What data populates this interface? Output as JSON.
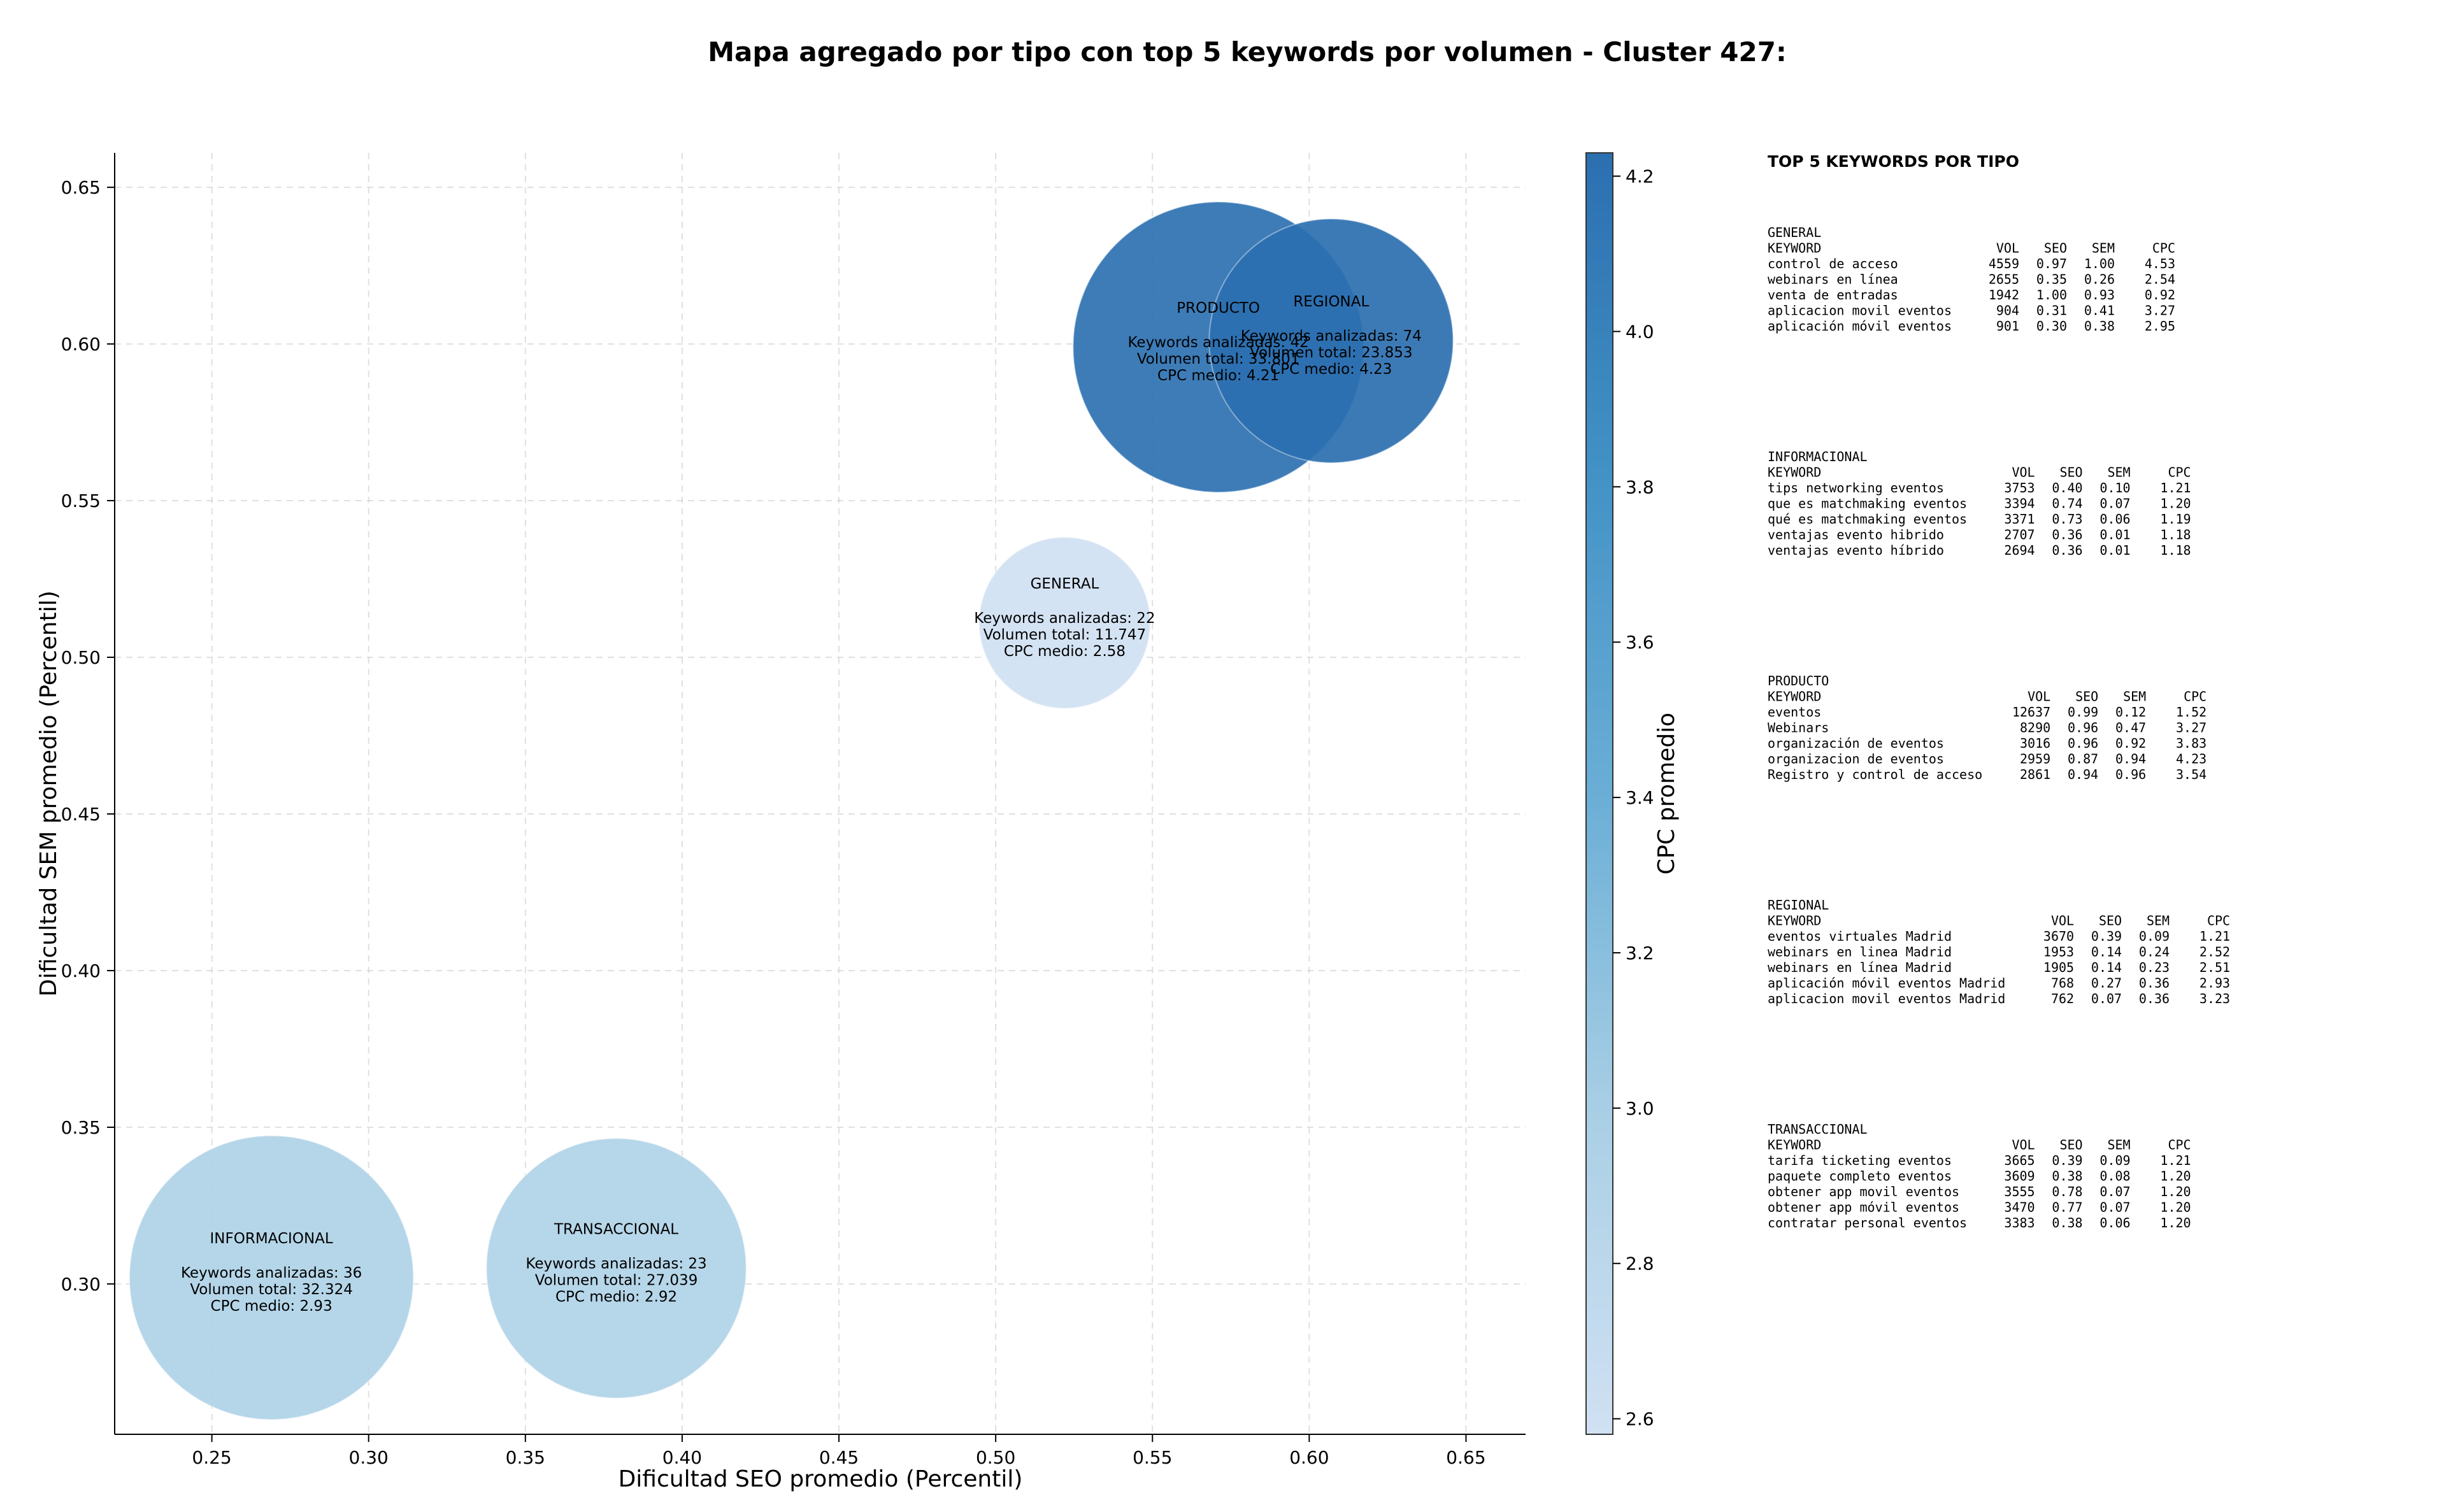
{
  "chart_data": {
    "type": "scatter",
    "title": "Mapa agregado por tipo con top 5 keywords por volumen - Cluster 427:",
    "xlabel": "Dificultad SEO promedio (Percentil)",
    "ylabel": "Dificultad SEM promedio (Percentil)",
    "xlim": [
      0.219,
      0.669
    ],
    "ylim": [
      0.252,
      0.661
    ],
    "xticks": [
      0.25,
      0.3,
      0.35,
      0.4,
      0.45,
      0.5,
      0.55,
      0.6,
      0.65
    ],
    "yticks": [
      0.3,
      0.35,
      0.4,
      0.45,
      0.5,
      0.55,
      0.6,
      0.65
    ],
    "grid": true,
    "colorbar": {
      "label": "CPC promedio",
      "min": 2.58,
      "max": 4.23,
      "ticks": [
        2.6,
        2.8,
        3.0,
        3.2,
        3.4,
        3.6,
        3.8,
        4.0,
        4.2
      ]
    },
    "points": [
      {
        "tipo": "INFORMACIONAL",
        "x": 0.269,
        "y": 0.302,
        "keywords_line": "Keywords analizadas: 36",
        "volumen_line": "Volumen total: 32.324",
        "cpc_line": "CPC medio: 2.93",
        "cpc": 2.93,
        "volumen": 32324
      },
      {
        "tipo": "TRANSACCIONAL",
        "x": 0.379,
        "y": 0.305,
        "keywords_line": "Keywords analizadas: 23",
        "volumen_line": "Volumen total: 27.039",
        "cpc_line": "CPC medio: 2.92",
        "cpc": 2.92,
        "volumen": 27039
      },
      {
        "tipo": "GENERAL",
        "x": 0.522,
        "y": 0.511,
        "keywords_line": "Keywords analizadas: 22",
        "volumen_line": "Volumen total: 11.747",
        "cpc_line": "CPC medio: 2.58",
        "cpc": 2.58,
        "volumen": 11747
      },
      {
        "tipo": "PRODUCTO",
        "x": 0.571,
        "y": 0.599,
        "keywords_line": "Keywords analizadas: 42",
        "volumen_line": "Volumen total: 33.801",
        "cpc_line": "CPC medio: 4.21",
        "cpc": 4.21,
        "volumen": 33801
      },
      {
        "tipo": "REGIONAL",
        "x": 0.607,
        "y": 0.601,
        "keywords_line": "Keywords analizadas: 74",
        "volumen_line": "Volumen total: 23.853",
        "cpc_line": "CPC medio: 4.23",
        "cpc": 4.23,
        "volumen": 23853
      }
    ],
    "side_panel": {
      "title": "TOP 5 KEYWORDS POR TIPO",
      "columns": [
        "KEYWORD",
        "VOL",
        "SEO",
        "SEM",
        "CPC"
      ],
      "groups": [
        {
          "name": "GENERAL",
          "rows": [
            [
              "control de acceso",
              "4559",
              "0.97",
              "1.00",
              "4.53"
            ],
            [
              "webinars en línea",
              "2655",
              "0.35",
              "0.26",
              "2.54"
            ],
            [
              "venta de entradas",
              "1942",
              "1.00",
              "0.93",
              "0.92"
            ],
            [
              "aplicacion movil eventos",
              "904",
              "0.31",
              "0.41",
              "3.27"
            ],
            [
              "aplicación móvil eventos",
              "901",
              "0.30",
              "0.38",
              "2.95"
            ]
          ]
        },
        {
          "name": "INFORMACIONAL",
          "rows": [
            [
              "tips networking eventos",
              "3753",
              "0.40",
              "0.10",
              "1.21"
            ],
            [
              "que es matchmaking eventos",
              "3394",
              "0.74",
              "0.07",
              "1.20"
            ],
            [
              "qué es matchmaking eventos",
              "3371",
              "0.73",
              "0.06",
              "1.19"
            ],
            [
              "ventajas evento hibrido",
              "2707",
              "0.36",
              "0.01",
              "1.18"
            ],
            [
              "ventajas evento híbrido",
              "2694",
              "0.36",
              "0.01",
              "1.18"
            ]
          ]
        },
        {
          "name": "PRODUCTO",
          "rows": [
            [
              "eventos",
              "12637",
              "0.99",
              "0.12",
              "1.52"
            ],
            [
              "Webinars",
              "8290",
              "0.96",
              "0.47",
              "3.27"
            ],
            [
              "organización de eventos",
              "3016",
              "0.96",
              "0.92",
              "3.83"
            ],
            [
              "organizacion de eventos",
              "2959",
              "0.87",
              "0.94",
              "4.23"
            ],
            [
              "Registro y control de acceso",
              "2861",
              "0.94",
              "0.96",
              "3.54"
            ]
          ]
        },
        {
          "name": "REGIONAL",
          "rows": [
            [
              "eventos virtuales Madrid",
              "3670",
              "0.39",
              "0.09",
              "1.21"
            ],
            [
              "webinars en linea Madrid",
              "1953",
              "0.14",
              "0.24",
              "2.52"
            ],
            [
              "webinars en línea Madrid",
              "1905",
              "0.14",
              "0.23",
              "2.51"
            ],
            [
              "aplicación móvil eventos Madrid",
              "768",
              "0.27",
              "0.36",
              "2.93"
            ],
            [
              "aplicacion movil eventos Madrid",
              "762",
              "0.07",
              "0.36",
              "3.23"
            ]
          ]
        },
        {
          "name": "TRANSACCIONAL",
          "rows": [
            [
              "tarifa ticketing eventos",
              "3665",
              "0.39",
              "0.09",
              "1.21"
            ],
            [
              "paquete completo eventos",
              "3609",
              "0.38",
              "0.08",
              "1.20"
            ],
            [
              "obtener app movil eventos",
              "3555",
              "0.78",
              "0.07",
              "1.20"
            ],
            [
              "obtener app móvil eventos",
              "3470",
              "0.77",
              "0.07",
              "1.20"
            ],
            [
              "contratar personal eventos",
              "3383",
              "0.38",
              "0.06",
              "1.20"
            ]
          ]
        }
      ]
    }
  }
}
